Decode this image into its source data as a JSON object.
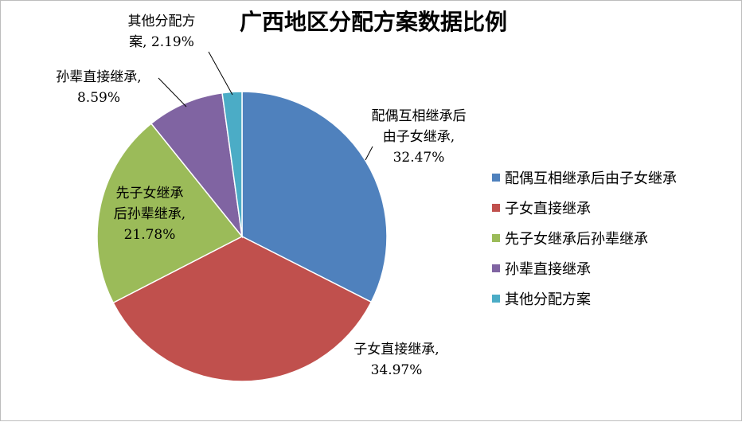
{
  "chart_data": {
    "type": "pie",
    "title": "广西地区分配方案数据比例",
    "legend_position": "right",
    "slices": [
      {
        "name": "配偶互相继承后由子女继承",
        "value": 32.47,
        "value_label": "32.47%",
        "color": "#4F81BD",
        "label_lines": [
          "配偶互相继承后",
          "由子女继承,",
          "32.47%"
        ]
      },
      {
        "name": "子女直接继承",
        "value": 34.97,
        "value_label": "34.97%",
        "color": "#C0504D",
        "label_lines": [
          "子女直接继承,",
          "34.97%"
        ]
      },
      {
        "name": "先子女继承后孙辈继承",
        "value": 21.78,
        "value_label": "21.78%",
        "color": "#9BBB59",
        "label_lines": [
          "先子女继承",
          "后孙辈继承,",
          "21.78%"
        ]
      },
      {
        "name": "孙辈直接继承",
        "value": 8.59,
        "value_label": "8.59%",
        "color": "#8064A2",
        "label_lines": [
          "孙辈直接继承,",
          "8.59%"
        ]
      },
      {
        "name": "其他分配方案",
        "value": 2.19,
        "value_label": "2.19%",
        "color": "#4BACC6",
        "label_lines": [
          "其他分配方",
          "案, 2.19%"
        ]
      }
    ]
  }
}
